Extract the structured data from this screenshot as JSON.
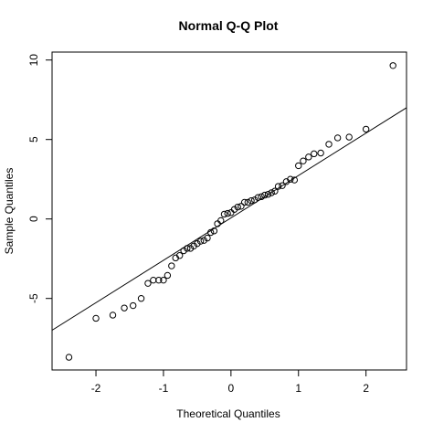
{
  "chart_data": {
    "type": "scatter",
    "title": "Normal Q-Q Plot",
    "xlabel": "Theoretical Quantiles",
    "ylabel": "Sample Quantiles",
    "xlim": [
      -2.65,
      2.6
    ],
    "ylim": [
      -9.5,
      10.5
    ],
    "x_ticks": [
      -2,
      -1,
      0,
      1,
      2
    ],
    "y_ticks": [
      -5,
      0,
      5,
      10
    ],
    "grid": false,
    "reference_line": {
      "x": [
        -2.65,
        2.6
      ],
      "y": [
        -7.0,
        7.0
      ]
    },
    "points": [
      {
        "x": -2.4,
        "y": -8.7
      },
      {
        "x": -2.0,
        "y": -6.25
      },
      {
        "x": -1.75,
        "y": -6.05
      },
      {
        "x": -1.58,
        "y": -5.6
      },
      {
        "x": -1.45,
        "y": -5.45
      },
      {
        "x": -1.33,
        "y": -5.0
      },
      {
        "x": -1.23,
        "y": -4.05
      },
      {
        "x": -1.15,
        "y": -3.85
      },
      {
        "x": -1.07,
        "y": -3.85
      },
      {
        "x": -1.0,
        "y": -3.85
      },
      {
        "x": -0.94,
        "y": -3.55
      },
      {
        "x": -0.88,
        "y": -2.95
      },
      {
        "x": -0.82,
        "y": -2.45
      },
      {
        "x": -0.76,
        "y": -2.3
      },
      {
        "x": -0.7,
        "y": -2.0
      },
      {
        "x": -0.65,
        "y": -1.85
      },
      {
        "x": -0.6,
        "y": -1.85
      },
      {
        "x": -0.55,
        "y": -1.7
      },
      {
        "x": -0.5,
        "y": -1.55
      },
      {
        "x": -0.45,
        "y": -1.4
      },
      {
        "x": -0.4,
        "y": -1.35
      },
      {
        "x": -0.35,
        "y": -1.2
      },
      {
        "x": -0.3,
        "y": -0.85
      },
      {
        "x": -0.25,
        "y": -0.75
      },
      {
        "x": -0.2,
        "y": -0.3
      },
      {
        "x": -0.15,
        "y": -0.1
      },
      {
        "x": -0.1,
        "y": 0.3
      },
      {
        "x": -0.05,
        "y": 0.35
      },
      {
        "x": 0.0,
        "y": 0.4
      },
      {
        "x": 0.05,
        "y": 0.6
      },
      {
        "x": 0.1,
        "y": 0.75
      },
      {
        "x": 0.15,
        "y": 0.8
      },
      {
        "x": 0.2,
        "y": 1.05
      },
      {
        "x": 0.25,
        "y": 1.05
      },
      {
        "x": 0.3,
        "y": 1.15
      },
      {
        "x": 0.35,
        "y": 1.2
      },
      {
        "x": 0.4,
        "y": 1.35
      },
      {
        "x": 0.45,
        "y": 1.4
      },
      {
        "x": 0.5,
        "y": 1.5
      },
      {
        "x": 0.55,
        "y": 1.55
      },
      {
        "x": 0.6,
        "y": 1.65
      },
      {
        "x": 0.65,
        "y": 1.75
      },
      {
        "x": 0.7,
        "y": 2.05
      },
      {
        "x": 0.76,
        "y": 2.1
      },
      {
        "x": 0.82,
        "y": 2.35
      },
      {
        "x": 0.88,
        "y": 2.5
      },
      {
        "x": 0.94,
        "y": 2.45
      },
      {
        "x": 1.0,
        "y": 3.35
      },
      {
        "x": 1.07,
        "y": 3.65
      },
      {
        "x": 1.15,
        "y": 3.9
      },
      {
        "x": 1.23,
        "y": 4.1
      },
      {
        "x": 1.33,
        "y": 4.15
      },
      {
        "x": 1.45,
        "y": 4.7
      },
      {
        "x": 1.58,
        "y": 5.1
      },
      {
        "x": 1.75,
        "y": 5.15
      },
      {
        "x": 2.0,
        "y": 5.65
      },
      {
        "x": 2.4,
        "y": 9.65
      }
    ]
  }
}
